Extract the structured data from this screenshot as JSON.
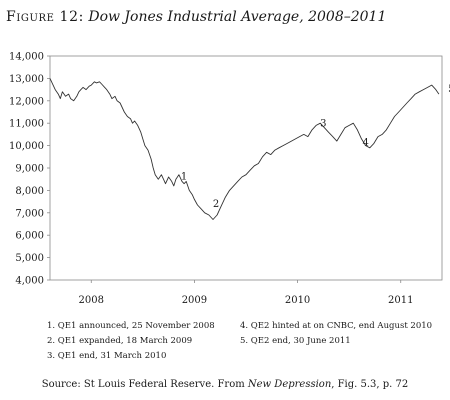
{
  "figure": {
    "label": "Figure 12:",
    "subtitle": "Dow Jones Industrial Average, 2008–2011"
  },
  "chart_data": {
    "type": "line",
    "title": "",
    "xlabel": "",
    "ylabel": "",
    "ylim": [
      4000,
      14000
    ],
    "xlim": [
      2007.6,
      2011.4
    ],
    "y_ticks": [
      "4,000",
      "5,000",
      "6,000",
      "7,000",
      "8,000",
      "9,000",
      "10,000",
      "11,000",
      "12,000",
      "13,000",
      "14,000"
    ],
    "y_tick_values": [
      4000,
      5000,
      6000,
      7000,
      8000,
      9000,
      10000,
      11000,
      12000,
      13000,
      14000
    ],
    "x_ticks": [
      "2008",
      "2009",
      "2010",
      "2011"
    ],
    "x_tick_values": [
      2008.0,
      2009.0,
      2010.0,
      2011.0
    ],
    "grid": false,
    "legend": "none",
    "line_color": "#333333",
    "series": [
      {
        "name": "",
        "x": [
          2007.6,
          2007.62,
          2007.65,
          2007.68,
          2007.7,
          2007.72,
          2007.75,
          2007.78,
          2007.8,
          2007.83,
          2007.86,
          2007.88,
          2007.9,
          2007.92,
          2007.95,
          2007.98,
          2008.0,
          2008.03,
          2008.05,
          2008.08,
          2008.1,
          2008.13,
          2008.15,
          2008.18,
          2008.2,
          2008.23,
          2008.25,
          2008.28,
          2008.3,
          2008.32,
          2008.35,
          2008.38,
          2008.4,
          2008.42,
          2008.45,
          2008.48,
          2008.5,
          2008.52,
          2008.55,
          2008.58,
          2008.6,
          2008.62,
          2008.65,
          2008.68,
          2008.7,
          2008.72,
          2008.75,
          2008.78,
          2008.8,
          2008.82,
          2008.85,
          2008.88,
          2008.9,
          2008.92,
          2008.95,
          2008.98,
          2009.0,
          2009.03,
          2009.06,
          2009.1,
          2009.14,
          2009.18,
          2009.22,
          2009.26,
          2009.3,
          2009.34,
          2009.38,
          2009.42,
          2009.46,
          2009.5,
          2009.54,
          2009.58,
          2009.62,
          2009.66,
          2009.7,
          2009.74,
          2009.78,
          2009.82,
          2009.86,
          2009.9,
          2009.94,
          2009.98,
          2010.02,
          2010.06,
          2010.1,
          2010.14,
          2010.18,
          2010.22,
          2010.26,
          2010.3,
          2010.34,
          2010.38,
          2010.42,
          2010.46,
          2010.5,
          2010.54,
          2010.58,
          2010.62,
          2010.66,
          2010.7,
          2010.74,
          2010.78,
          2010.82,
          2010.86,
          2010.9,
          2010.94,
          2010.98,
          2011.02,
          2011.06,
          2011.1,
          2011.14,
          2011.18,
          2011.22,
          2011.26,
          2011.3,
          2011.34,
          2011.37
        ],
        "y": [
          13000,
          12800,
          12500,
          12300,
          12100,
          12400,
          12200,
          12300,
          12100,
          12000,
          12200,
          12400,
          12500,
          12600,
          12500,
          12650,
          12700,
          12850,
          12800,
          12850,
          12750,
          12600,
          12500,
          12300,
          12100,
          12200,
          12000,
          11900,
          11700,
          11500,
          11300,
          11200,
          11000,
          11100,
          10900,
          10600,
          10300,
          10000,
          9800,
          9400,
          9000,
          8700,
          8500,
          8700,
          8500,
          8300,
          8600,
          8400,
          8200,
          8500,
          8700,
          8400,
          8300,
          8400,
          8000,
          7800,
          7600,
          7350,
          7200,
          7000,
          6900,
          6700,
          6900,
          7300,
          7700,
          8000,
          8200,
          8400,
          8600,
          8700,
          8900,
          9100,
          9200,
          9500,
          9700,
          9600,
          9800,
          9900,
          10000,
          10100,
          10200,
          10300,
          10400,
          10500,
          10400,
          10700,
          10900,
          11000,
          10800,
          10600,
          10400,
          10200,
          10500,
          10800,
          10900,
          11000,
          10700,
          10300,
          10000,
          9900,
          10100,
          10400,
          10500,
          10700,
          11000,
          11300,
          11500,
          11700,
          11900,
          12100,
          12300,
          12400,
          12500,
          12600,
          12700,
          12500,
          12300
        ]
      }
    ],
    "annotations": [
      {
        "label": "1",
        "x": 2008.9,
        "y": 8480
      },
      {
        "label": "2",
        "x": 2009.21,
        "y": 7250
      },
      {
        "label": "3",
        "x": 2010.25,
        "y": 10860
      },
      {
        "label": "4",
        "x": 2010.66,
        "y": 10010
      },
      {
        "label": "5",
        "x": 2011.49,
        "y": 12400
      }
    ]
  },
  "notes": [
    "1. QE1 announced, 25 November 2008",
    "4. QE2 hinted at on CNBC, end August 2010",
    "2. QE1 expanded, 18 March 2009",
    "5. QE2 end, 30 June 2011",
    "3. QE1 end, 31 March 2010"
  ],
  "source": {
    "prefix": "Source: St Louis Federal Reserve. From ",
    "book": "New Depression",
    "suffix": ", Fig. 5.3, p. 72"
  }
}
